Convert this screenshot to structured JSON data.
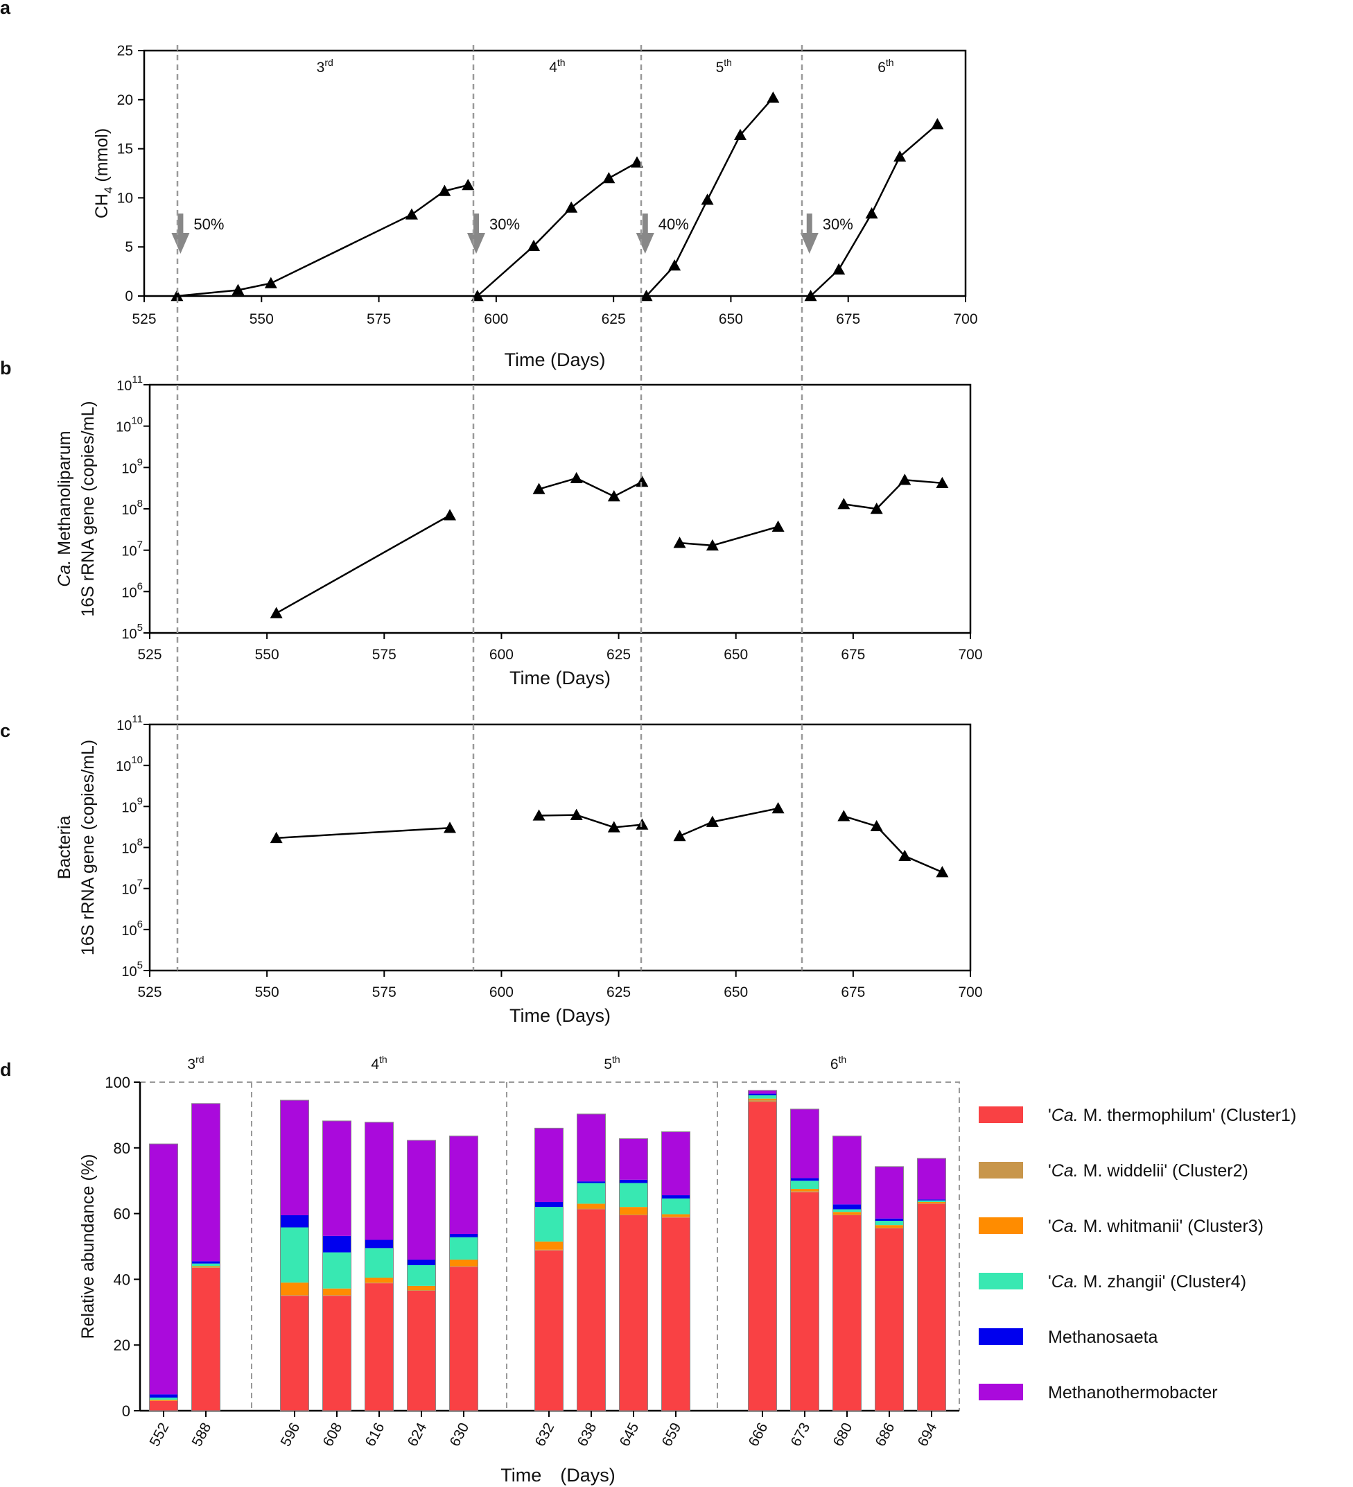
{
  "figure": {
    "panel_labels": [
      "a",
      "b",
      "c",
      "d"
    ]
  },
  "chart_data": [
    {
      "panel": "a",
      "type": "line",
      "xlabel": "Time (Days)",
      "ylabel": "CH",
      "ylabel_sub": "4",
      "ylabel_unit": " (mmol)",
      "xlim": [
        525,
        700
      ],
      "ylim": [
        0,
        25
      ],
      "xticks": [
        525,
        550,
        575,
        600,
        625,
        650,
        675,
        700
      ],
      "yticks": [
        0,
        5,
        10,
        15,
        20,
        25
      ],
      "cycle_starts": [
        532,
        595,
        631,
        666
      ],
      "cycles": [
        {
          "base": "3",
          "sup": "rd",
          "x": [
            532,
            545,
            552,
            582,
            589,
            594
          ],
          "y": [
            0,
            0.6,
            1.3,
            8.3,
            10.7,
            11.3
          ]
        },
        {
          "base": "4",
          "sup": "th",
          "x": [
            596,
            608,
            616,
            624,
            630
          ],
          "y": [
            0,
            5.1,
            9.0,
            12.0,
            13.6
          ]
        },
        {
          "base": "5",
          "sup": "th",
          "x": [
            632,
            638,
            645,
            652,
            659
          ],
          "y": [
            0,
            3.1,
            9.8,
            16.4,
            20.2
          ]
        },
        {
          "base": "6",
          "sup": "th",
          "x": [
            667,
            673,
            680,
            686,
            694
          ],
          "y": [
            0,
            2.7,
            8.4,
            14.2,
            17.5
          ]
        }
      ],
      "annotations": [
        {
          "x": 532,
          "text": "50%"
        },
        {
          "x": 595,
          "text": "30%"
        },
        {
          "x": 631,
          "text": "40%"
        },
        {
          "x": 666,
          "text": "30%"
        }
      ]
    },
    {
      "panel": "b",
      "type": "line",
      "scale": "log",
      "xlabel": "Time (Days)",
      "ylabel_line1_italic": "Ca.",
      "ylabel_line1_rest": " Methanoliparum",
      "ylabel_line2": "16S rRNA gene (copies/mL)",
      "xlim": [
        525,
        700
      ],
      "ylim_exp": [
        5,
        11
      ],
      "xticks": [
        525,
        550,
        575,
        600,
        625,
        650,
        675,
        700
      ],
      "ytick_base": "10",
      "ytick_exps": [
        "5",
        "6",
        "7",
        "8",
        "9",
        "10",
        "11"
      ],
      "segments": [
        {
          "x": [
            552,
            589
          ],
          "y": [
            300000.0,
            70000000.0
          ]
        },
        {
          "x": [
            608,
            616,
            624,
            630
          ],
          "y": [
            300000000.0,
            550000000.0,
            200000000.0,
            450000000.0
          ]
        },
        {
          "x": [
            638,
            645,
            659
          ],
          "y": [
            15000000.0,
            13000000.0,
            37000000.0
          ]
        },
        {
          "x": [
            673,
            680,
            686,
            694
          ],
          "y": [
            130000000.0,
            100000000.0,
            500000000.0,
            420000000.0
          ]
        }
      ]
    },
    {
      "panel": "c",
      "type": "line",
      "scale": "log",
      "xlabel": "Time (Days)",
      "ylabel_line1": "Bacteria",
      "ylabel_line2": "16S rRNA gene (copies/mL)",
      "xlim": [
        525,
        700
      ],
      "ylim_exp": [
        5,
        11
      ],
      "xticks": [
        525,
        550,
        575,
        600,
        625,
        650,
        675,
        700
      ],
      "ytick_base": "10",
      "ytick_exps": [
        "5",
        "6",
        "7",
        "8",
        "9",
        "10",
        "11"
      ],
      "segments": [
        {
          "x": [
            552,
            589
          ],
          "y": [
            170000000.0,
            300000000.0
          ]
        },
        {
          "x": [
            608,
            616,
            624,
            630
          ],
          "y": [
            600000000.0,
            620000000.0,
            310000000.0,
            360000000.0
          ]
        },
        {
          "x": [
            638,
            645,
            659
          ],
          "y": [
            190000000.0,
            420000000.0,
            900000000.0
          ]
        },
        {
          "x": [
            673,
            680,
            686,
            694
          ],
          "y": [
            580000000.0,
            330000000.0,
            62000000.0,
            25000000.0
          ]
        }
      ]
    },
    {
      "panel": "d",
      "type": "bar",
      "stacked": true,
      "xlabel": "Time　(Days)",
      "ylabel": "Relative abundance (%)",
      "ylim": [
        0,
        100
      ],
      "yticks": [
        0,
        20,
        40,
        60,
        80,
        100
      ],
      "groups": [
        {
          "base": "3",
          "sup": "rd",
          "categories": [
            "552",
            "588"
          ]
        },
        {
          "base": "4",
          "sup": "th",
          "categories": [
            "596",
            "608",
            "616",
            "624",
            "630"
          ]
        },
        {
          "base": "5",
          "sup": "th",
          "categories": [
            "632",
            "638",
            "645",
            "659"
          ]
        },
        {
          "base": "6",
          "sup": "th",
          "categories": [
            "666",
            "673",
            "680",
            "686",
            "694"
          ]
        }
      ],
      "categories": [
        "552",
        "588",
        "596",
        "608",
        "616",
        "624",
        "630",
        "632",
        "638",
        "645",
        "659",
        "666",
        "673",
        "680",
        "686",
        "694"
      ],
      "series": [
        {
          "name_prefix": "'",
          "name_italic": "Ca.",
          "name_rest": " M. thermophilum' (Cluster1)",
          "color": "#f94144",
          "values": [
            3.0,
            43.5,
            35.0,
            35.0,
            38.8,
            36.5,
            43.8,
            48.8,
            61.3,
            59.5,
            58.8,
            94.0,
            66.5,
            59.5,
            55.5,
            63.0
          ]
        },
        {
          "name_prefix": "'",
          "name_italic": "Ca.",
          "name_rest": " M. widdelii' (Cluster2)",
          "color": "#c8964b",
          "values": [
            0.0,
            0.2,
            0.2,
            0.2,
            0.2,
            0.2,
            0.2,
            0.2,
            0.2,
            0.2,
            0.2,
            0.5,
            0.3,
            0.2,
            0.2,
            0.2
          ]
        },
        {
          "name_prefix": "'",
          "name_italic": "Ca.",
          "name_rest": " M. whitmanii' (Cluster3)",
          "color": "#ff8c00",
          "values": [
            0.3,
            0.3,
            3.8,
            2.0,
            1.5,
            1.3,
            2.0,
            2.5,
            1.5,
            2.3,
            0.8,
            0.5,
            0.7,
            0.8,
            0.8,
            0.3
          ]
        },
        {
          "name_prefix": "'",
          "name_italic": "Ca.",
          "name_rest": " M. zhangii' (Cluster4)",
          "color": "#38e8b2",
          "values": [
            0.7,
            0.8,
            16.8,
            11.0,
            9.0,
            6.3,
            6.8,
            10.5,
            6.3,
            7.3,
            4.8,
            1.0,
            2.5,
            0.8,
            1.3,
            0.5
          ]
        },
        {
          "name": "Methanosaeta",
          "color": "#0000ee",
          "values": [
            1.0,
            0.7,
            3.7,
            5.0,
            2.5,
            1.7,
            1.0,
            1.5,
            0.5,
            1.0,
            1.0,
            0.5,
            0.8,
            1.5,
            0.7,
            0.3
          ]
        },
        {
          "name": "Methanothermobacter",
          "color": "#aa0adc",
          "values": [
            76.2,
            48.0,
            35.0,
            35.0,
            35.8,
            36.3,
            29.8,
            22.5,
            20.5,
            12.5,
            19.3,
            1.0,
            21.0,
            20.8,
            15.8,
            12.5
          ]
        }
      ]
    }
  ]
}
